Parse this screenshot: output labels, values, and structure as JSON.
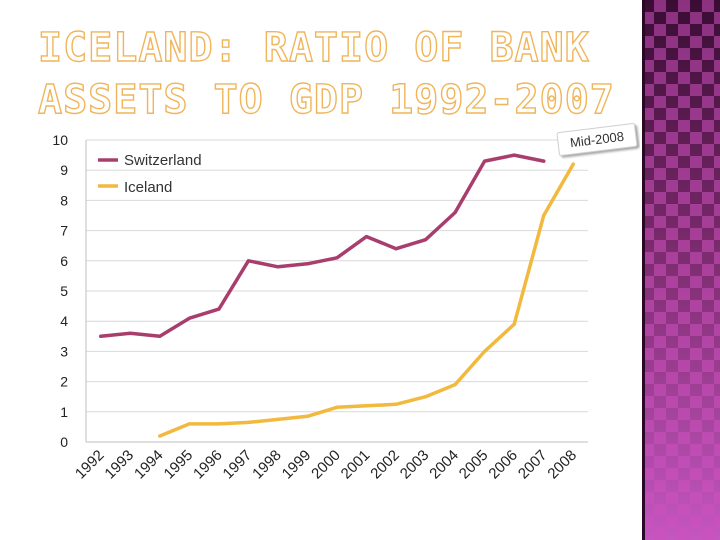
{
  "slide": {
    "title_line1": "ICELAND: RATIO OF BANK",
    "title_line2": "ASSETS TO GDP 1992-2007",
    "accent_color": "#f0b55a",
    "panel_color": "#6b2262"
  },
  "callout": {
    "text": "Mid-2008"
  },
  "chart_data": {
    "type": "line",
    "title": "ICELAND: RATIO OF BANK ASSETS TO GDP 1992-2007",
    "xlabel": "",
    "ylabel": "",
    "categories": [
      "1992",
      "1993",
      "1994",
      "1995",
      "1996",
      "1997",
      "1998",
      "1999",
      "2000",
      "2001",
      "2002",
      "2003",
      "2004",
      "2005",
      "2006",
      "2007",
      "2008"
    ],
    "y_ticks": [
      "0",
      "1",
      "2",
      "3",
      "4",
      "5",
      "6",
      "7",
      "8",
      "9",
      "10"
    ],
    "ylim": [
      0,
      10
    ],
    "grid": true,
    "legend": "top-left",
    "series": [
      {
        "name": "Switzerland",
        "color": "#a83e6e",
        "values": [
          3.5,
          3.6,
          3.5,
          4.1,
          4.4,
          6.0,
          5.8,
          5.9,
          6.1,
          6.8,
          6.4,
          6.7,
          7.6,
          9.3,
          9.5,
          9.3,
          null
        ]
      },
      {
        "name": "Iceland",
        "color": "#f2b93f",
        "values": [
          null,
          null,
          0.2,
          0.6,
          0.6,
          0.65,
          0.75,
          0.85,
          1.15,
          1.2,
          1.25,
          1.5,
          1.9,
          3.0,
          3.9,
          7.5,
          9.2
        ]
      }
    ]
  }
}
